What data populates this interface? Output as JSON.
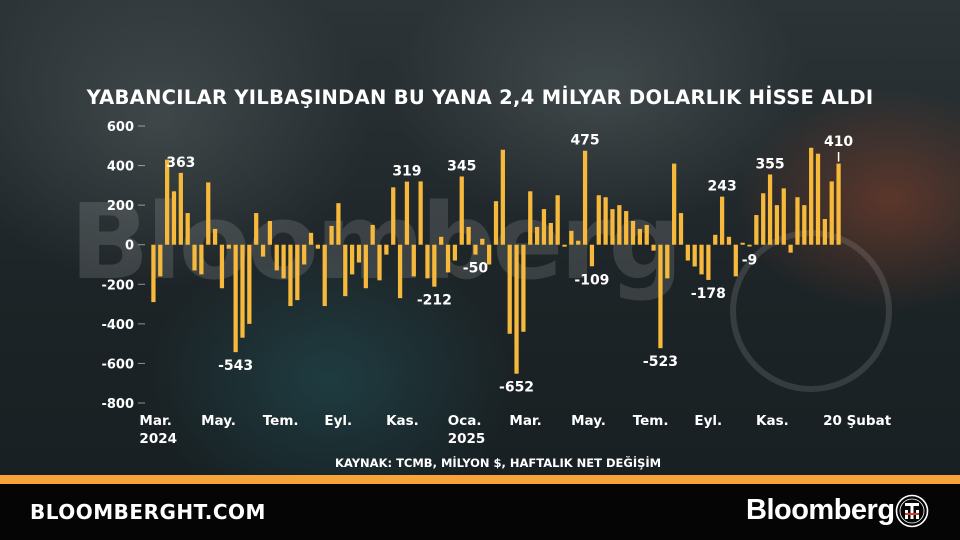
{
  "title": "YABANCILAR YILBAŞINDAN BU YANA 2,4 MİLYAR DOLARLIK HİSSE ALDI",
  "source": "KAYNAK: TCMB, MİLYON $, HAFTALIK NET DEĞİŞİM",
  "watermark": "Bloomberg",
  "footer": {
    "site": "BLOOMBERGHT.COM",
    "brand": "Bloomberg",
    "logo_icon": "bloomberght-seal-icon"
  },
  "colors": {
    "bar": "#f6b93b",
    "text": "#ffffff",
    "accent_band": "#f6a33a",
    "footer_bg": "#050505"
  },
  "chart_data": {
    "type": "bar",
    "title": "YABANCILAR YILBAŞINDAN BU YANA 2,4 MİLYAR DOLARLIK HİSSE ALDI",
    "ylim": [
      -800,
      600
    ],
    "yticks": [
      600,
      400,
      200,
      0,
      -200,
      -400,
      -600,
      -800
    ],
    "ytick_labels": [
      "600",
      "400",
      "200",
      "0",
      "-200",
      "-400",
      "-600",
      "-800"
    ],
    "xtick_labels": [
      {
        "label": "Mar.",
        "sub": "2024",
        "index": 0
      },
      {
        "label": "May.",
        "sub": "",
        "index": 9
      },
      {
        "label": "Tem.",
        "sub": "",
        "index": 18
      },
      {
        "label": "Eyl.",
        "sub": "",
        "index": 27
      },
      {
        "label": "Kas.",
        "sub": "",
        "index": 36
      },
      {
        "label": "Oca.",
        "sub": "2025",
        "index": 45
      },
      {
        "label": "Mar.",
        "sub": "",
        "index": 54
      },
      {
        "label": "May.",
        "sub": "",
        "index": 63
      },
      {
        "label": "Tem.",
        "sub": "",
        "index": 72
      },
      {
        "label": "Eyl.",
        "sub": "",
        "index": 81
      },
      {
        "label": "Kas.",
        "sub": "",
        "index": 90
      },
      {
        "label": "20 Şubat",
        "sub": "",
        "index": 103
      }
    ],
    "values": [
      -290,
      -160,
      430,
      270,
      363,
      160,
      -130,
      -150,
      315,
      80,
      -220,
      -20,
      -543,
      -470,
      -400,
      160,
      -60,
      120,
      -130,
      -170,
      -310,
      -280,
      -100,
      60,
      -20,
      -310,
      95,
      210,
      -260,
      -150,
      -90,
      -220,
      100,
      -180,
      -50,
      290,
      -270,
      319,
      -160,
      320,
      -170,
      -212,
      40,
      -140,
      -80,
      345,
      90,
      -50,
      30,
      -100,
      220,
      480,
      -450,
      -652,
      -440,
      270,
      90,
      180,
      110,
      250,
      -10,
      70,
      20,
      475,
      -109,
      250,
      240,
      180,
      200,
      170,
      120,
      80,
      100,
      -30,
      -523,
      -170,
      410,
      160,
      -80,
      -110,
      -150,
      -178,
      50,
      243,
      40,
      -160,
      10,
      -9,
      150,
      260,
      355,
      200,
      285,
      -40,
      240,
      200,
      490,
      460,
      130,
      320,
      410
    ],
    "annotations": [
      {
        "index": 4,
        "text": "363"
      },
      {
        "index": 12,
        "text": "-543"
      },
      {
        "index": 37,
        "text": "319"
      },
      {
        "index": 41,
        "text": "-212"
      },
      {
        "index": 45,
        "text": "345"
      },
      {
        "index": 47,
        "text": "-50"
      },
      {
        "index": 53,
        "text": "-652"
      },
      {
        "index": 63,
        "text": "475"
      },
      {
        "index": 64,
        "text": "-109"
      },
      {
        "index": 74,
        "text": "-523"
      },
      {
        "index": 81,
        "text": "-178"
      },
      {
        "index": 83,
        "text": "243"
      },
      {
        "index": 87,
        "text": "-9"
      },
      {
        "index": 90,
        "text": "355"
      },
      {
        "index": 100,
        "text": "410"
      }
    ]
  }
}
